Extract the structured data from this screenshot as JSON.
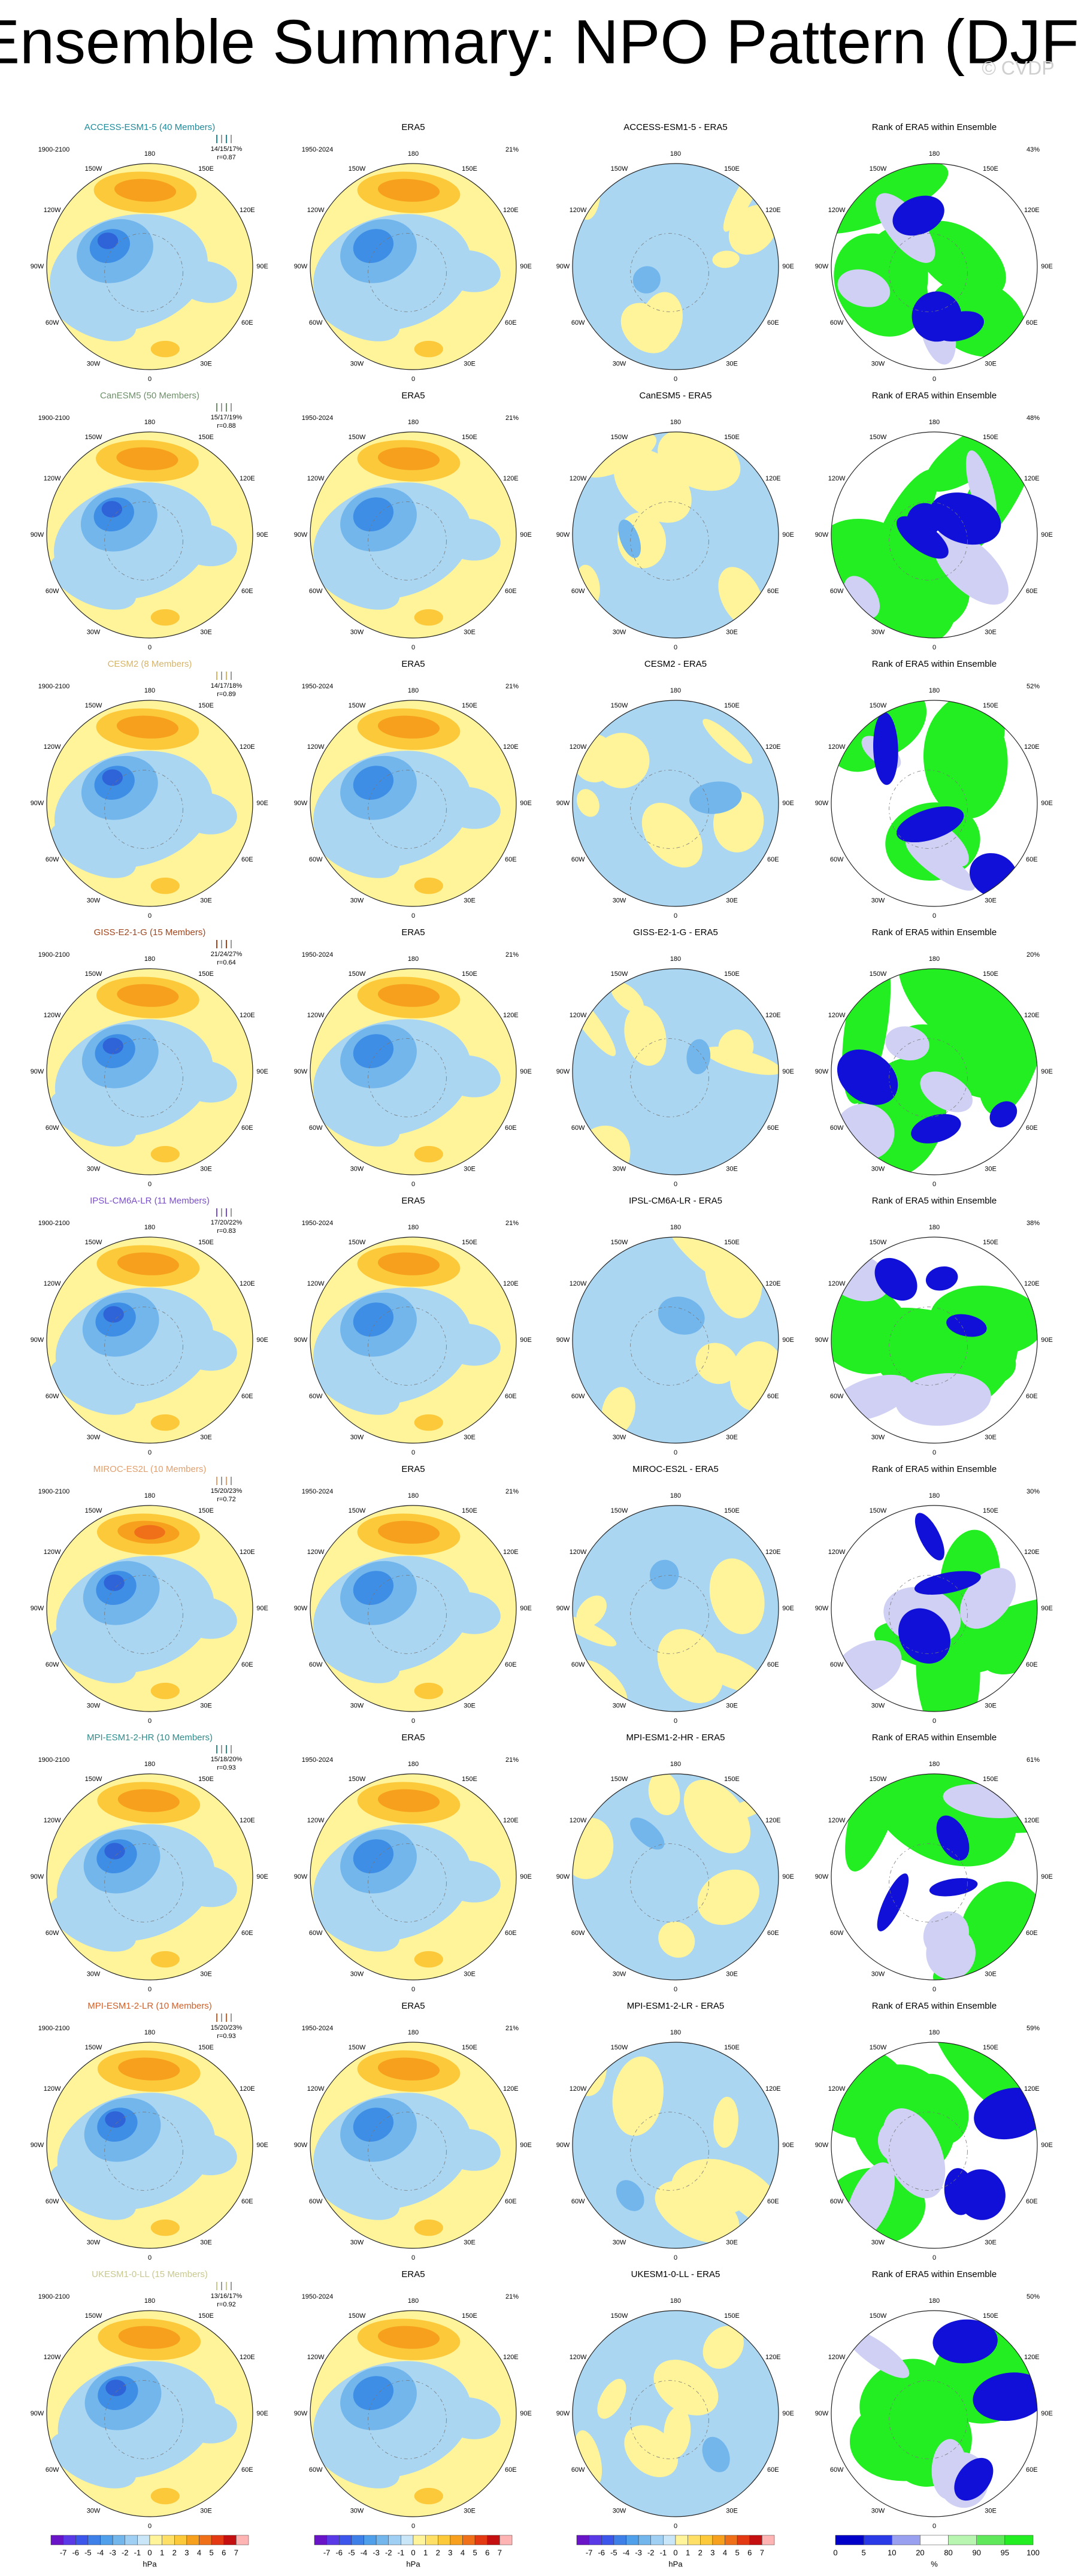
{
  "title": "Ensemble Summary: NPO Pattern (DJF)",
  "watermark": "© CVDP",
  "lon_labels": [
    "180",
    "150E",
    "120E",
    "90E",
    "60E",
    "30E",
    "0",
    "30W",
    "60W",
    "90W",
    "120W",
    "150W"
  ],
  "rows": [
    {
      "model": {
        "title": "ACCESS-ESM1-5 (40 Members)",
        "color": "#1f8a9a",
        "years": "1900-2100",
        "stats": "14/15/17%",
        "r": "r=0.87"
      },
      "era5": {
        "title": "ERA5",
        "years": "1950-2024",
        "pct": "21%"
      },
      "diff": {
        "title": "ACCESS-ESM1-5 - ERA5"
      },
      "rank": {
        "title": "Rank of ERA5 within Ensemble",
        "pct": "43%"
      }
    },
    {
      "model": {
        "title": "CanESM5 (50 Members)",
        "color": "#6e8f6a",
        "years": "1900-2100",
        "stats": "15/17/19%",
        "r": "r=0.88"
      },
      "era5": {
        "title": "ERA5",
        "years": "1950-2024",
        "pct": "21%"
      },
      "diff": {
        "title": "CanESM5 - ERA5"
      },
      "rank": {
        "title": "Rank of ERA5 within Ensemble",
        "pct": "48%"
      }
    },
    {
      "model": {
        "title": "CESM2 (8 Members)",
        "color": "#d6b46a",
        "years": "1900-2100",
        "stats": "14/17/18%",
        "r": "r=0.89"
      },
      "era5": {
        "title": "ERA5",
        "years": "1950-2024",
        "pct": "21%"
      },
      "diff": {
        "title": "CESM2 - ERA5"
      },
      "rank": {
        "title": "Rank of ERA5 within Ensemble",
        "pct": "52%"
      }
    },
    {
      "model": {
        "title": "GISS-E2-1-G (15 Members)",
        "color": "#a0461e",
        "years": "1900-2100",
        "stats": "21/24/27%",
        "r": "r=0.64"
      },
      "era5": {
        "title": "ERA5",
        "years": "1950-2024",
        "pct": "21%"
      },
      "diff": {
        "title": "GISS-E2-1-G - ERA5"
      },
      "rank": {
        "title": "Rank of ERA5 within Ensemble",
        "pct": "20%"
      }
    },
    {
      "model": {
        "title": "IPSL-CM6A-LR (11 Members)",
        "color": "#7a4fc8",
        "years": "1900-2100",
        "stats": "17/20/22%",
        "r": "r=0.83"
      },
      "era5": {
        "title": "ERA5",
        "years": "1950-2024",
        "pct": "21%"
      },
      "diff": {
        "title": "IPSL-CM6A-LR - ERA5"
      },
      "rank": {
        "title": "Rank of ERA5 within Ensemble",
        "pct": "38%"
      }
    },
    {
      "model": {
        "title": "MIROC-ES2L (10 Members)",
        "color": "#e0a070",
        "years": "1900-2100",
        "stats": "15/20/23%",
        "r": "r=0.72"
      },
      "era5": {
        "title": "ERA5",
        "years": "1950-2024",
        "pct": "21%"
      },
      "diff": {
        "title": "MIROC-ES2L - ERA5"
      },
      "rank": {
        "title": "Rank of ERA5 within Ensemble",
        "pct": "30%"
      }
    },
    {
      "model": {
        "title": "MPI-ESM1-2-HR (10 Members)",
        "color": "#2f8a8a",
        "years": "1900-2100",
        "stats": "15/18/20%",
        "r": "r=0.93"
      },
      "era5": {
        "title": "ERA5",
        "years": "1950-2024",
        "pct": "21%"
      },
      "diff": {
        "title": "MPI-ESM1-2-HR - ERA5"
      },
      "rank": {
        "title": "Rank of ERA5 within Ensemble",
        "pct": "61%"
      }
    },
    {
      "model": {
        "title": "MPI-ESM1-2-LR (10 Members)",
        "color": "#d0602a",
        "years": "1900-2100",
        "stats": "15/20/23%",
        "r": "r=0.93"
      },
      "era5": {
        "title": "ERA5",
        "years": "1950-2024",
        "pct": "21%"
      },
      "diff": {
        "title": "MPI-ESM1-2-LR - ERA5"
      },
      "rank": {
        "title": "Rank of ERA5 within Ensemble",
        "pct": "59%"
      }
    },
    {
      "model": {
        "title": "UKESM1-0-LL (15 Members)",
        "color": "#c8c890",
        "years": "1900-2100",
        "stats": "13/16/17%",
        "r": "r=0.92"
      },
      "era5": {
        "title": "ERA5",
        "years": "1950-2024",
        "pct": "21%"
      },
      "diff": {
        "title": "UKESM1-0-LL - ERA5"
      },
      "rank": {
        "title": "Rank of ERA5 within Ensemble",
        "pct": "50%"
      }
    }
  ],
  "colorbars": {
    "hpa": {
      "ticks": [
        -7,
        -6,
        -5,
        -4,
        -3,
        -2,
        -1,
        0,
        1,
        2,
        3,
        4,
        5,
        6,
        7
      ],
      "unit": "hPa"
    },
    "rank": {
      "ticks": [
        0,
        5,
        10,
        20,
        80,
        90,
        95,
        100
      ],
      "unit": "%"
    }
  }
}
